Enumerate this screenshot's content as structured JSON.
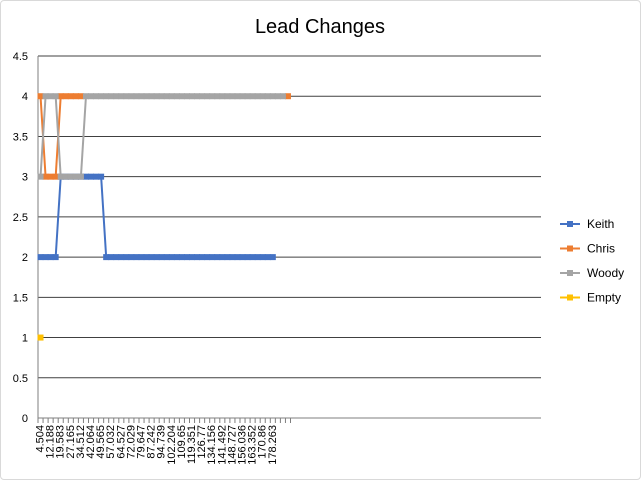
{
  "chart_data": {
    "type": "line",
    "title": "Lead Changes",
    "xlabel": "",
    "ylabel": "",
    "ylim": [
      0,
      4.5
    ],
    "ytick_step": 0.5,
    "grid": "horizontal",
    "legend_position": "right",
    "x_tick_labels": [
      "4.504",
      "12.188",
      "19.583",
      "27.165",
      "34.512",
      "42.064",
      "49.565",
      "57.032",
      "64.527",
      "72.029",
      "79.647",
      "87.242",
      "94.739",
      "102.204",
      "109.65",
      "119.351",
      "126.77",
      "134.156",
      "141.492",
      "148.727",
      "156.036",
      "163.352",
      "170.86",
      "178.263"
    ],
    "series": [
      {
        "name": "Keith",
        "color": "#4472C4",
        "values": [
          2,
          2,
          2,
          2,
          3,
          3,
          3,
          3,
          3,
          3,
          3,
          3,
          3,
          2,
          2,
          2,
          2,
          2,
          2,
          2,
          2,
          2,
          2,
          2,
          2,
          2,
          2,
          2,
          2,
          2,
          2,
          2,
          2,
          2,
          2,
          2,
          2,
          2,
          2,
          2,
          2,
          2,
          2,
          2,
          2,
          2,
          2
        ]
      },
      {
        "name": "Chris",
        "color": "#ED7D31",
        "values": [
          4,
          3,
          3,
          3,
          4,
          4,
          4,
          4,
          4,
          null,
          null,
          null,
          null,
          null,
          null,
          null,
          null,
          null,
          null,
          null,
          null,
          null,
          null,
          null,
          null,
          null,
          null,
          null,
          null,
          null,
          null,
          null,
          null,
          null,
          null,
          null,
          null,
          null,
          null,
          null,
          null,
          null,
          null,
          null,
          null,
          null,
          null,
          null,
          null,
          4
        ]
      },
      {
        "name": "Woody",
        "color": "#A5A5A5",
        "values": [
          3,
          4,
          4,
          4,
          3,
          3,
          3,
          3,
          3,
          4,
          4,
          4,
          4,
          4,
          4,
          4,
          4,
          4,
          4,
          4,
          4,
          4,
          4,
          4,
          4,
          4,
          4,
          4,
          4,
          4,
          4,
          4,
          4,
          4,
          4,
          4,
          4,
          4,
          4,
          4,
          4,
          4,
          4,
          4,
          4,
          4,
          4,
          4,
          4
        ]
      },
      {
        "name": "Empty",
        "color": "#FFC000",
        "values": [
          1
        ]
      }
    ]
  }
}
